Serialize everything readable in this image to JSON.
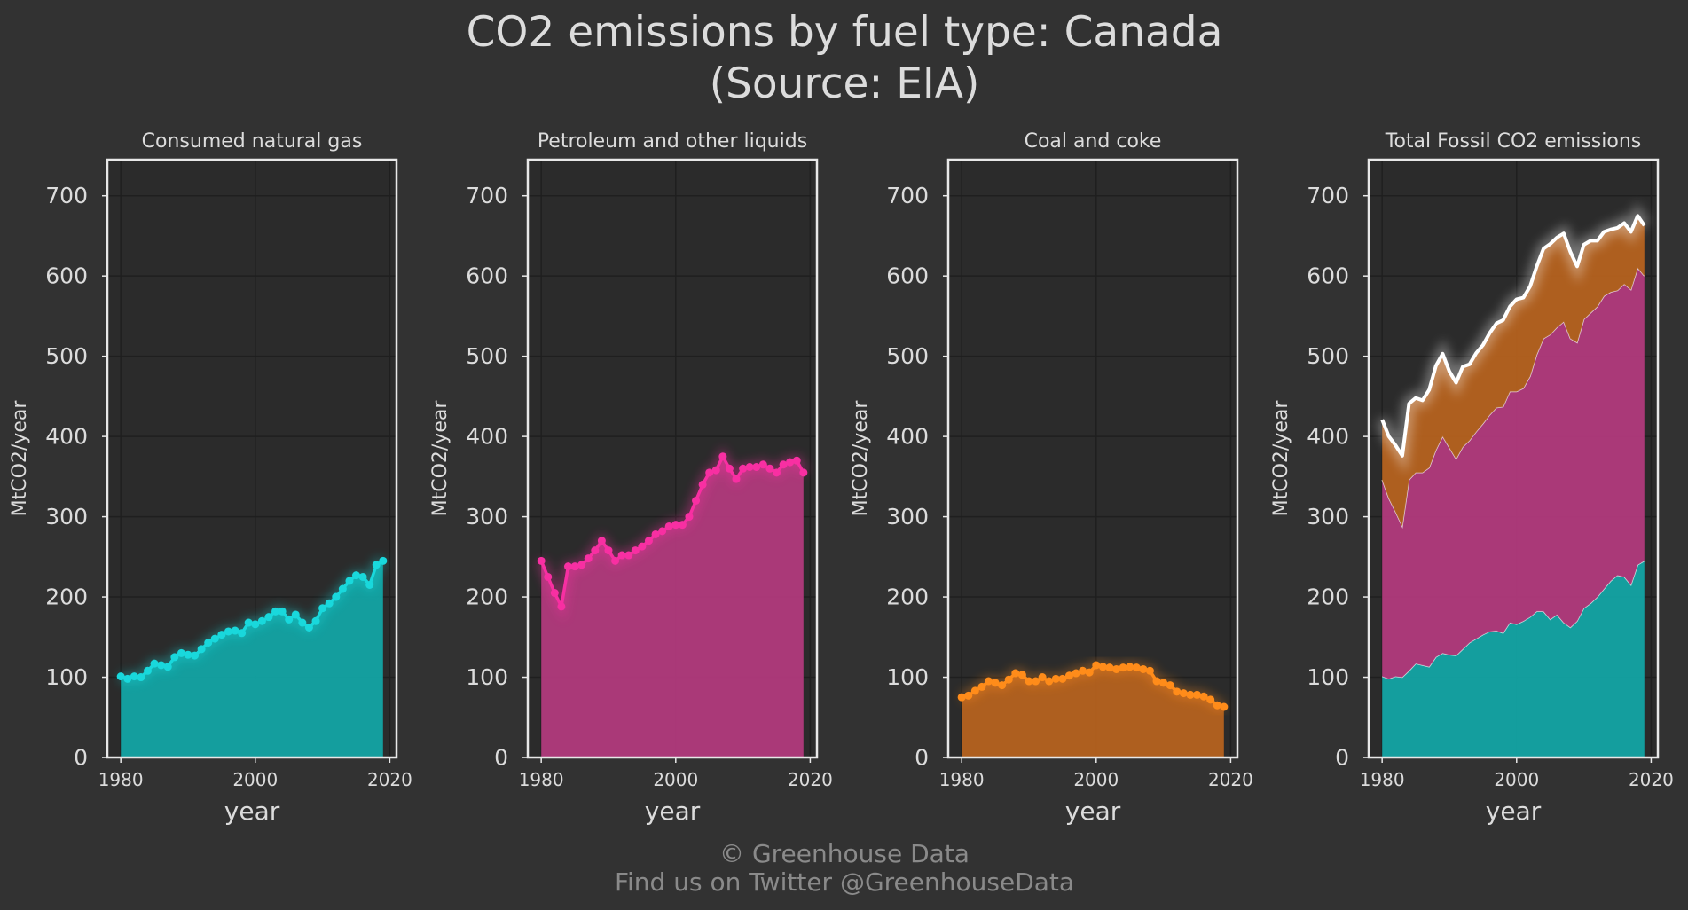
{
  "title": "CO2 emissions by fuel type: Canada",
  "subtitle": "(Source: EIA)",
  "footer": {
    "line1": "© Greenhouse Data",
    "line2": "Find us on Twitter @GreenhouseData"
  },
  "colors": {
    "background": "#323232",
    "plot_background": "#2b2b2b",
    "grid": "#1f1f1f",
    "frame": "#e8e8e8",
    "gas": "#19d8dc",
    "gas_fill": "#13a4a4",
    "petroleum": "#f82fa2",
    "petroleum_fill": "#b13a7c",
    "coal": "#ff8c1a",
    "coal_fill": "#b5621f",
    "total": "#ffffff"
  },
  "chart_data": [
    {
      "type": "area",
      "panel_title": "Consumed natural gas",
      "xlabel": "year",
      "ylabel": "MtCO2/year",
      "xlim": [
        1978,
        2021
      ],
      "ylim": [
        0,
        745
      ],
      "xticks": [
        1980,
        2000,
        2020
      ],
      "yticks": [
        0,
        100,
        200,
        300,
        400,
        500,
        600,
        700
      ],
      "grid": true,
      "series": [
        {
          "key": "gas",
          "x": [
            1980,
            1981,
            1982,
            1983,
            1984,
            1985,
            1986,
            1987,
            1988,
            1989,
            1990,
            1991,
            1992,
            1993,
            1994,
            1995,
            1996,
            1997,
            1998,
            1999,
            2000,
            2001,
            2002,
            2003,
            2004,
            2005,
            2006,
            2007,
            2008,
            2009,
            2010,
            2011,
            2012,
            2013,
            2014,
            2015,
            2016,
            2017,
            2018,
            2019
          ],
          "values": [
            101,
            98,
            101,
            100,
            108,
            117,
            115,
            113,
            125,
            130,
            128,
            127,
            135,
            143,
            148,
            153,
            157,
            158,
            155,
            168,
            166,
            170,
            175,
            182,
            182,
            172,
            178,
            168,
            162,
            170,
            186,
            192,
            200,
            210,
            220,
            227,
            225,
            215,
            240,
            245
          ]
        }
      ]
    },
    {
      "type": "area",
      "panel_title": "Petroleum and other liquids",
      "xlabel": "year",
      "ylabel": "MtCO2/year",
      "xlim": [
        1978,
        2021
      ],
      "ylim": [
        0,
        745
      ],
      "xticks": [
        1980,
        2000,
        2020
      ],
      "yticks": [
        0,
        100,
        200,
        300,
        400,
        500,
        600,
        700
      ],
      "grid": true,
      "series": [
        {
          "key": "petroleum",
          "x": [
            1980,
            1981,
            1982,
            1983,
            1984,
            1985,
            1986,
            1987,
            1988,
            1989,
            1990,
            1991,
            1992,
            1993,
            1994,
            1995,
            1996,
            1997,
            1998,
            1999,
            2000,
            2001,
            2002,
            2003,
            2004,
            2005,
            2006,
            2007,
            2008,
            2009,
            2010,
            2011,
            2012,
            2013,
            2014,
            2015,
            2016,
            2017,
            2018,
            2019
          ],
          "values": [
            245,
            225,
            205,
            188,
            238,
            238,
            240,
            248,
            258,
            270,
            258,
            245,
            252,
            252,
            258,
            263,
            270,
            278,
            282,
            288,
            290,
            290,
            300,
            320,
            340,
            355,
            358,
            375,
            360,
            347,
            360,
            362,
            362,
            365,
            360,
            355,
            365,
            368,
            370,
            355
          ]
        }
      ]
    },
    {
      "type": "area",
      "panel_title": "Coal and coke",
      "xlabel": "year",
      "ylabel": "MtCO2/year",
      "xlim": [
        1978,
        2021
      ],
      "ylim": [
        0,
        745
      ],
      "xticks": [
        1980,
        2000,
        2020
      ],
      "yticks": [
        0,
        100,
        200,
        300,
        400,
        500,
        600,
        700
      ],
      "grid": true,
      "series": [
        {
          "key": "coal",
          "x": [
            1980,
            1981,
            1982,
            1983,
            1984,
            1985,
            1986,
            1987,
            1988,
            1989,
            1990,
            1991,
            1992,
            1993,
            1994,
            1995,
            1996,
            1997,
            1998,
            1999,
            2000,
            2001,
            2002,
            2003,
            2004,
            2005,
            2006,
            2007,
            2008,
            2009,
            2010,
            2011,
            2012,
            2013,
            2014,
            2015,
            2016,
            2017,
            2018,
            2019
          ],
          "values": [
            75,
            77,
            83,
            88,
            95,
            93,
            90,
            97,
            105,
            103,
            95,
            95,
            100,
            95,
            98,
            98,
            102,
            105,
            108,
            106,
            115,
            113,
            112,
            110,
            112,
            113,
            112,
            110,
            108,
            95,
            93,
            90,
            82,
            80,
            78,
            78,
            76,
            72,
            65,
            63
          ]
        }
      ]
    },
    {
      "type": "area",
      "stacked": true,
      "panel_title": "Total Fossil CO2 emissions",
      "xlabel": "year",
      "ylabel": "MtCO2/year",
      "xlim": [
        1978,
        2021
      ],
      "ylim": [
        0,
        745
      ],
      "xticks": [
        1980,
        2000,
        2020
      ],
      "yticks": [
        0,
        100,
        200,
        300,
        400,
        500,
        600,
        700
      ],
      "grid": true,
      "stack_order": [
        "gas",
        "petroleum",
        "coal"
      ],
      "total_line": true
    }
  ]
}
